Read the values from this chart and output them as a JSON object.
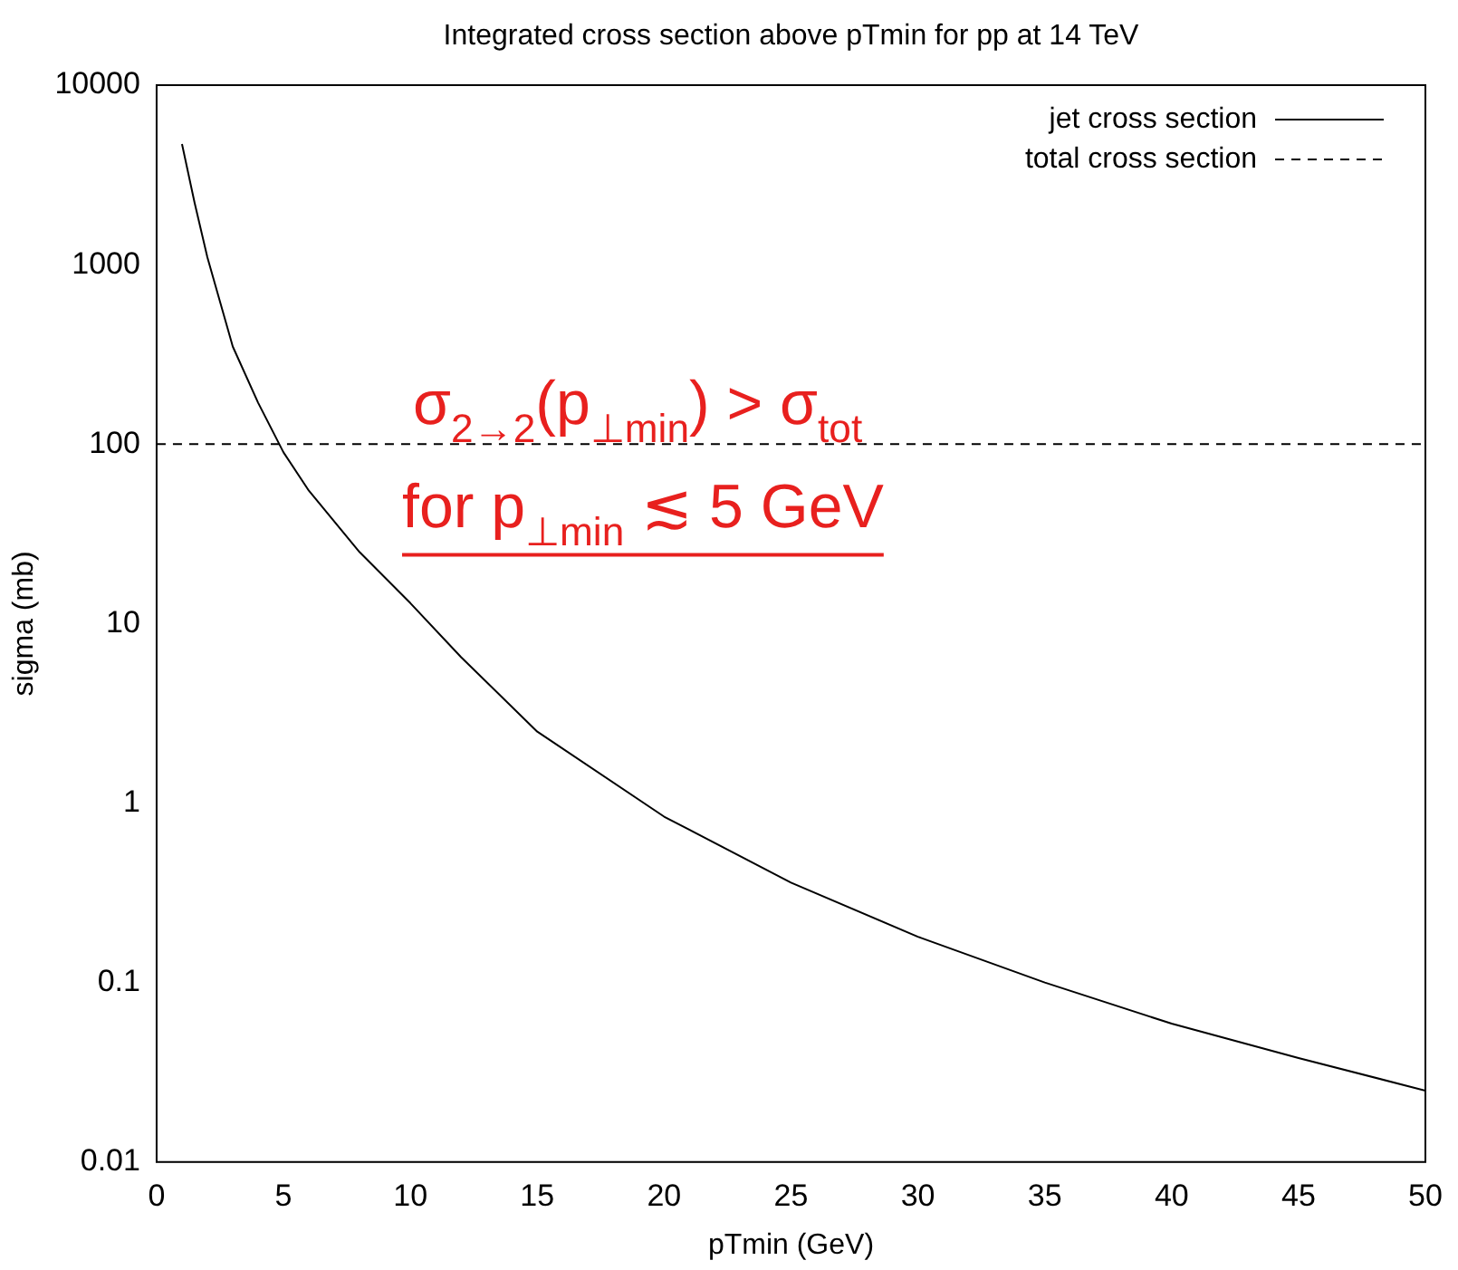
{
  "chart_data": {
    "type": "line",
    "title": "Integrated cross section above pTmin for pp at 14 TeV",
    "xlabel": "pTmin (GeV)",
    "ylabel": "sigma (mb)",
    "series": [
      {
        "name": "jet cross section",
        "color": "#000000",
        "line_style": "solid",
        "x": [
          1,
          1.5,
          2,
          3,
          4,
          5,
          6,
          8,
          10,
          12,
          15,
          20,
          25,
          30,
          35,
          40,
          45,
          50
        ],
        "values": [
          4700,
          2200,
          1100,
          350,
          170,
          90,
          55,
          25,
          13,
          6.5,
          2.5,
          0.84,
          0.36,
          0.18,
          0.1,
          0.059,
          0.038,
          0.025
        ]
      },
      {
        "name": "total cross section",
        "color": "#000000",
        "line_style": "dashed",
        "x": [
          0,
          50
        ],
        "values": [
          100,
          100
        ]
      }
    ],
    "xlim": [
      0,
      50
    ],
    "xticks": [
      0,
      5,
      10,
      15,
      20,
      25,
      30,
      35,
      40,
      45,
      50
    ],
    "ylim": [
      0.01,
      10000
    ],
    "yticks": [
      0.01,
      0.1,
      1,
      10,
      100,
      1000,
      10000
    ],
    "log": "y",
    "grid": false,
    "legend": "top right",
    "marker": "none",
    "annotations": [
      "σ$_{2→2}$(p$_{⊥min}$) > σ$_{tot}$",
      "for p$_{⊥min}$ ≲ 5 GeV"
    ]
  }
}
